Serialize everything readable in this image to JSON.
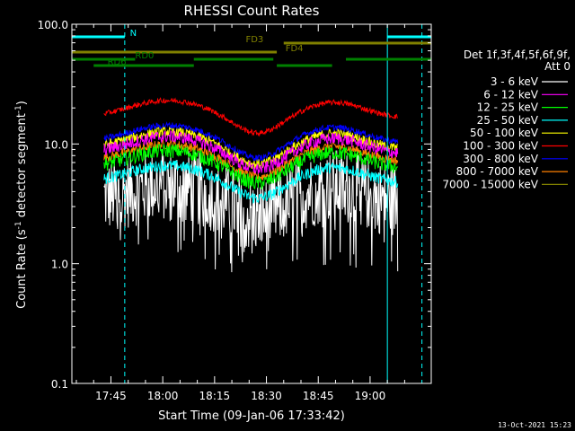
{
  "chart_data": {
    "type": "line",
    "title": "RHESSI Count Rates",
    "xlabel": "Start Time (09-Jan-06 17:33:42)",
    "ylabel_main": "Count Rate (s",
    "ylabel_sup1": "-1",
    "ylabel_mid": " detector segment",
    "ylabel_sup2": "-1",
    "ylabel_end": ")",
    "y_scale": "log",
    "ylim": [
      0.1,
      100
    ],
    "xlim": [
      "17:33:42",
      "19:17:42"
    ],
    "x_ticks": [
      "17:45",
      "18:00",
      "18:15",
      "18:30",
      "18:45",
      "19:00"
    ],
    "y_ticks": [
      "0.1",
      "1.0",
      "10.0",
      "100.0"
    ],
    "legend": {
      "header_line1": "Det 1f,3f,4f,5f,6f,9f,",
      "header_line2": "Att 0",
      "placement": "right"
    },
    "series": [
      {
        "name": "3 - 6 keV",
        "color": "#ffffff",
        "base": 4.2,
        "noise": 0.45
      },
      {
        "name": "6 - 12 keV",
        "color": "#ff00ff",
        "base": 10.5,
        "noise": 0.12
      },
      {
        "name": "12 - 25 keV",
        "color": "#00ff00",
        "base": 8.0,
        "noise": 0.14
      },
      {
        "name": "25 - 50 keV",
        "color": "#00ffff",
        "base": 6.0,
        "noise": 0.11
      },
      {
        "name": "50 - 100 keV",
        "color": "#ffff00",
        "base": 11.5,
        "noise": 0.1
      },
      {
        "name": "100 - 300 keV",
        "color": "#ff0000",
        "base": 21.0,
        "noise": 0.05
      },
      {
        "name": "300 - 800 keV",
        "color": "#0000ff",
        "base": 13.0,
        "noise": 0.06
      },
      {
        "name": "800 - 7000 keV",
        "color": "#ff8000",
        "base": 9.0,
        "noise": 0.09
      },
      {
        "name": "7000 - 15000 keV",
        "color": "#808000",
        "base": 9.0,
        "noise": 0.0
      }
    ],
    "flags": [
      {
        "name": "N",
        "color": "#00ffff",
        "segments": [
          [
            "17:33:42",
            "17:49:00"
          ],
          [
            "19:05:00",
            "19:17:42"
          ]
        ]
      },
      {
        "name": "FD3",
        "color": "#808000",
        "segments": [
          [
            "18:35:00",
            "19:17:42"
          ]
        ]
      },
      {
        "name": "FD4",
        "color": "#808000",
        "segments": [
          [
            "17:33:42",
            "18:33:00"
          ]
        ]
      },
      {
        "name": "RD0",
        "color": "#008000",
        "segments": [
          [
            "17:33:42",
            "17:52:00"
          ],
          [
            "18:09:00",
            "18:32:00"
          ],
          [
            "18:53:00",
            "19:17:42"
          ]
        ]
      },
      {
        "name": "RD6",
        "color": "#008000",
        "segments": [
          [
            "17:40:00",
            "18:09:00"
          ],
          [
            "18:33:00",
            "18:49:00"
          ]
        ]
      }
    ],
    "vertical_markers": [
      {
        "time": "17:33:42",
        "color": "#00ffff",
        "style": "solid"
      },
      {
        "time": "17:49:00",
        "color": "#00ffff",
        "style": "dashed"
      },
      {
        "time": "19:05:00",
        "color": "#00ffff",
        "style": "solid"
      },
      {
        "time": "19:15:00",
        "color": "#00ffff",
        "style": "dashed"
      }
    ],
    "data_window": [
      "17:43:00",
      "19:08:00"
    ]
  },
  "footer_date": "13-Oct-2021 15:23"
}
